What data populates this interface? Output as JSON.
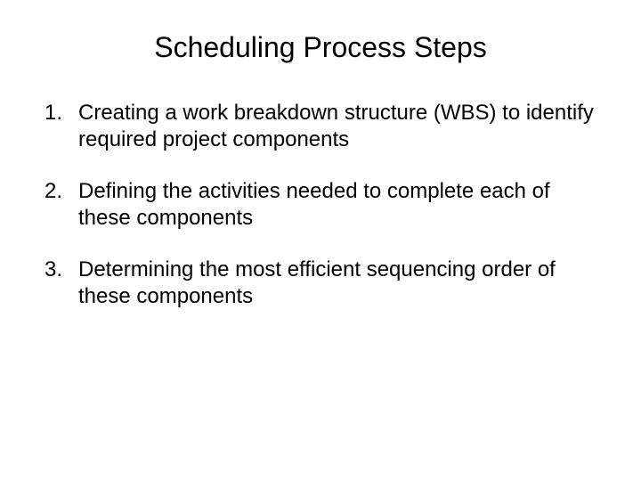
{
  "title": "Scheduling Process Steps",
  "title_fontsize": 32,
  "body_fontsize": 24,
  "text_color": "#000000",
  "background_color": "#ffffff",
  "list_items": [
    {
      "number": "1.",
      "text": "Creating a work breakdown structure (WBS) to identify required project components"
    },
    {
      "number": "2.",
      "text": "Defining the activities needed to complete each of these components"
    },
    {
      "number": "3.",
      "text": "Determining the most efficient sequencing order of these components"
    }
  ]
}
